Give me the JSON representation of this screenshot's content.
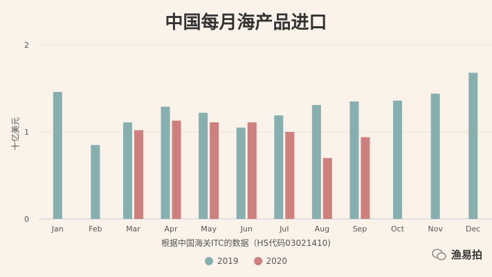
{
  "chart_data": {
    "type": "bar",
    "title": "中国每月海产品进口",
    "xlabel": "根据中国海关ITC的数据（HS代码03021410)",
    "ylabel": "十亿美元",
    "categories": [
      "Jan",
      "Feb",
      "Mar",
      "Apr",
      "May",
      "Jun",
      "Jul",
      "Aug",
      "Sep",
      "Oct",
      "Nov",
      "Dec"
    ],
    "series": [
      {
        "name": "2019",
        "color": "#86b0b0",
        "values": [
          1.46,
          0.85,
          1.11,
          1.29,
          1.22,
          1.05,
          1.19,
          1.31,
          1.35,
          1.36,
          1.44,
          1.68
        ]
      },
      {
        "name": "2020",
        "color": "#cd807c",
        "values": [
          null,
          null,
          1.02,
          1.13,
          1.11,
          1.11,
          1.0,
          0.7,
          0.94,
          null,
          null,
          null
        ]
      }
    ],
    "ylim": [
      0,
      2
    ],
    "yticks": [
      "0",
      "1",
      "2"
    ],
    "grid": true,
    "legend": "bottom"
  },
  "watermark": {
    "text": "渔易拍",
    "icon": "wechat-icon"
  }
}
